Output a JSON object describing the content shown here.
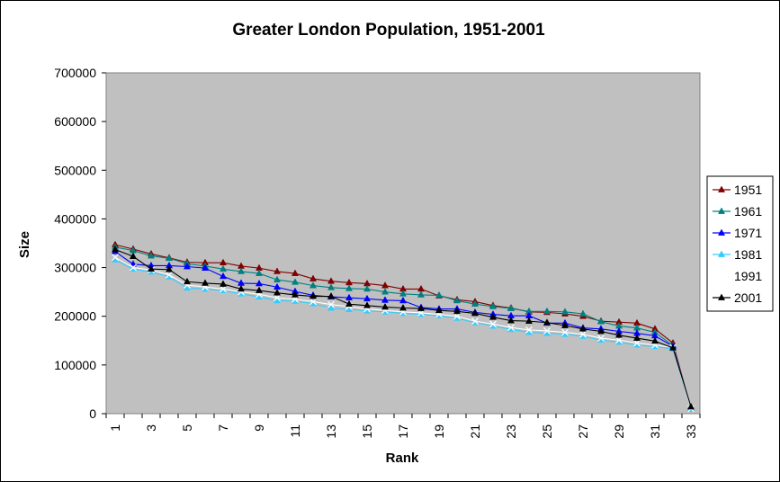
{
  "chart_data": {
    "type": "line",
    "title": "Greater London Population, 1951-2001",
    "xlabel": "Rank",
    "ylabel": "Size",
    "ylim": [
      0,
      700000
    ],
    "yticks": [
      0,
      100000,
      200000,
      300000,
      400000,
      500000,
      600000,
      700000
    ],
    "x": [
      1,
      2,
      3,
      4,
      5,
      6,
      7,
      8,
      9,
      10,
      11,
      12,
      13,
      14,
      15,
      16,
      17,
      18,
      19,
      20,
      21,
      22,
      23,
      24,
      25,
      26,
      27,
      28,
      29,
      30,
      31,
      32,
      33
    ],
    "xtick_labels": [
      "1",
      "3",
      "5",
      "7",
      "9",
      "11",
      "13",
      "15",
      "17",
      "19",
      "21",
      "23",
      "25",
      "27",
      "29",
      "31",
      "33"
    ],
    "plot_background": "#c0c0c0",
    "grid": false,
    "legend_position": "right",
    "series": [
      {
        "name": "1951",
        "color": "#800000",
        "marker": "triangle",
        "values": [
          347000,
          338000,
          328000,
          320000,
          311000,
          310000,
          310000,
          303000,
          299000,
          292000,
          288000,
          277000,
          272000,
          269000,
          267000,
          263000,
          256000,
          256000,
          242000,
          234000,
          230000,
          222000,
          217000,
          209000,
          208000,
          205000,
          200000,
          190000,
          188000,
          186000,
          174000,
          145000,
          10000
        ]
      },
      {
        "name": "1961",
        "color": "#008080",
        "marker": "triangle",
        "values": [
          342000,
          335000,
          324000,
          319000,
          308000,
          303000,
          297000,
          292000,
          288000,
          275000,
          270000,
          263000,
          259000,
          257000,
          256000,
          250000,
          246000,
          244000,
          243000,
          232000,
          225000,
          220000,
          216000,
          210000,
          210000,
          209000,
          205000,
          189000,
          180000,
          176000,
          167000,
          140000,
          10000
        ]
      },
      {
        "name": "1971",
        "color": "#0000ff",
        "marker": "triangle",
        "values": [
          333000,
          307000,
          304000,
          304000,
          302000,
          299000,
          282000,
          268000,
          267000,
          260000,
          251000,
          243000,
          240000,
          238000,
          236000,
          233000,
          232000,
          218000,
          215000,
          215000,
          208000,
          204000,
          201000,
          201000,
          186000,
          186000,
          176000,
          174000,
          169000,
          165000,
          160000,
          138000,
          10000
        ]
      },
      {
        "name": "1981",
        "color": "#33ccff",
        "marker": "triangle",
        "values": [
          316000,
          297000,
          291000,
          281000,
          258000,
          256000,
          253000,
          246000,
          240000,
          232000,
          231000,
          226000,
          217000,
          214000,
          211000,
          209000,
          206000,
          204000,
          201000,
          196000,
          187000,
          180000,
          173000,
          167000,
          165000,
          163000,
          159000,
          151000,
          147000,
          141000,
          138000,
          133000,
          10000
        ]
      },
      {
        "name": "1991",
        "color": "#ffffff",
        "marker": "cross",
        "values": [
          321000,
          300000,
          295000,
          285000,
          264000,
          260000,
          256000,
          250000,
          245000,
          238000,
          235000,
          230000,
          224000,
          220000,
          215000,
          212000,
          209000,
          207000,
          204000,
          200000,
          190000,
          184000,
          177000,
          172000,
          170000,
          167000,
          163000,
          155000,
          151000,
          145000,
          141000,
          136000,
          10000
        ]
      },
      {
        "name": "2001",
        "color": "#000000",
        "marker": "triangle",
        "values": [
          337000,
          323000,
          297000,
          296000,
          271000,
          268000,
          266000,
          256000,
          253000,
          248000,
          244000,
          241000,
          241000,
          225000,
          222000,
          219000,
          217000,
          216000,
          212000,
          210000,
          206000,
          198000,
          191000,
          190000,
          187000,
          181000,
          174000,
          169000,
          161000,
          155000,
          149000,
          135000,
          14000
        ]
      }
    ]
  }
}
